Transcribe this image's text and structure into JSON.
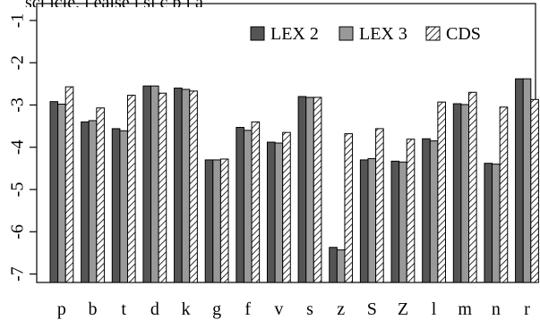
{
  "header_fragment": "scl  icle,  l ealse  i  sl  c  p  i  a",
  "chart_data": {
    "type": "bar",
    "categories": [
      "p",
      "b",
      "t",
      "d",
      "k",
      "g",
      "f",
      "v",
      "s",
      "z",
      "S",
      "Z",
      "l",
      "m",
      "n",
      "r"
    ],
    "series": [
      {
        "name": "LEX 2",
        "color": "#555555",
        "pattern": "solid",
        "values": [
          -2.92,
          -3.4,
          -3.56,
          -2.55,
          -2.6,
          -4.3,
          -3.53,
          -3.88,
          -2.8,
          -6.37,
          -4.3,
          -4.33,
          -3.8,
          -2.97,
          -4.38,
          -2.38
        ]
      },
      {
        "name": "LEX 3",
        "color": "#999999",
        "pattern": "solid",
        "values": [
          -2.98,
          -3.37,
          -3.61,
          -2.55,
          -2.63,
          -4.3,
          -3.6,
          -3.9,
          -2.82,
          -6.43,
          -4.27,
          -4.35,
          -3.85,
          -2.99,
          -4.4,
          -2.38
        ]
      },
      {
        "name": "CDS",
        "color": "#ffffff",
        "pattern": "hatch",
        "values": [
          -2.57,
          -3.07,
          -2.77,
          -2.72,
          -2.67,
          -4.28,
          -3.4,
          -3.65,
          -2.82,
          -3.68,
          -3.56,
          -3.81,
          -2.93,
          -2.7,
          -3.05,
          -2.87
        ]
      }
    ],
    "yticks": [
      -1,
      -2,
      -3,
      -4,
      -5,
      -6,
      -7
    ],
    "ylim": [
      -7.2,
      -0.6
    ],
    "legend_position": "top-right",
    "grid": false
  }
}
